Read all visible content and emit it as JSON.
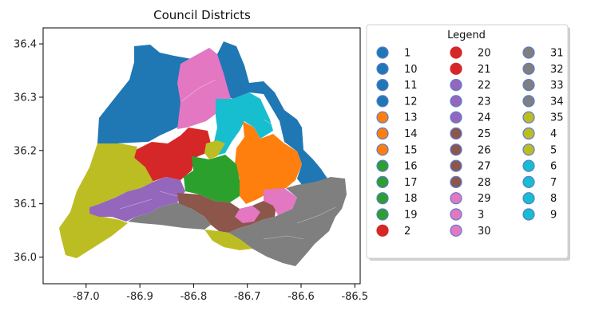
{
  "chart_data": {
    "type": "map",
    "title": "Council Districts",
    "xlabel": "",
    "ylabel": "",
    "xlim": [
      -87.08,
      -86.49
    ],
    "ylim": [
      35.95,
      36.43
    ],
    "xticks": [
      "-87.0",
      "-86.9",
      "-86.8",
      "-86.7",
      "-86.6",
      "-86.5"
    ],
    "xtick_values": [
      -87.0,
      -86.9,
      -86.8,
      -86.7,
      -86.6,
      -86.5
    ],
    "yticks": [
      "36.0",
      "36.1",
      "36.2",
      "36.3",
      "36.4"
    ],
    "ytick_values": [
      36.0,
      36.1,
      36.2,
      36.3,
      36.4
    ],
    "grid": false,
    "legend": {
      "title": "Legend",
      "placement": "outside-right",
      "entries": [
        {
          "label": "1",
          "color": "#1f77b4"
        },
        {
          "label": "10",
          "color": "#1f77b4"
        },
        {
          "label": "11",
          "color": "#1f77b4"
        },
        {
          "label": "12",
          "color": "#1f77b4"
        },
        {
          "label": "13",
          "color": "#ff7f0e"
        },
        {
          "label": "14",
          "color": "#ff7f0e"
        },
        {
          "label": "15",
          "color": "#ff7f0e"
        },
        {
          "label": "16",
          "color": "#2ca02c"
        },
        {
          "label": "17",
          "color": "#2ca02c"
        },
        {
          "label": "18",
          "color": "#2ca02c"
        },
        {
          "label": "19",
          "color": "#2ca02c"
        },
        {
          "label": "2",
          "color": "#d62728"
        },
        {
          "label": "20",
          "color": "#d62728"
        },
        {
          "label": "21",
          "color": "#d62728"
        },
        {
          "label": "22",
          "color": "#9467bd"
        },
        {
          "label": "23",
          "color": "#9467bd"
        },
        {
          "label": "24",
          "color": "#9467bd"
        },
        {
          "label": "25",
          "color": "#8c564b"
        },
        {
          "label": "26",
          "color": "#8c564b"
        },
        {
          "label": "27",
          "color": "#8c564b"
        },
        {
          "label": "28",
          "color": "#8c564b"
        },
        {
          "label": "29",
          "color": "#e377c2"
        },
        {
          "label": "3",
          "color": "#e377c2"
        },
        {
          "label": "30",
          "color": "#e377c2"
        },
        {
          "label": "31",
          "color": "#7f7f7f"
        },
        {
          "label": "32",
          "color": "#7f7f7f"
        },
        {
          "label": "33",
          "color": "#7f7f7f"
        },
        {
          "label": "34",
          "color": "#7f7f7f"
        },
        {
          "label": "35",
          "color": "#bcbd22"
        },
        {
          "label": "4",
          "color": "#bcbd22"
        },
        {
          "label": "5",
          "color": "#bcbd22"
        },
        {
          "label": "6",
          "color": "#17becf"
        },
        {
          "label": "7",
          "color": "#17becf"
        },
        {
          "label": "8",
          "color": "#17becf"
        },
        {
          "label": "9",
          "color": "#17becf"
        }
      ]
    },
    "color_groups": [
      {
        "name": "blue",
        "color": "#1f77b4"
      },
      {
        "name": "orange",
        "color": "#ff7f0e"
      },
      {
        "name": "green",
        "color": "#2ca02c"
      },
      {
        "name": "red",
        "color": "#d62728"
      },
      {
        "name": "purple",
        "color": "#9467bd"
      },
      {
        "name": "brown",
        "color": "#8c564b"
      },
      {
        "name": "pink",
        "color": "#e377c2"
      },
      {
        "name": "gray",
        "color": "#7f7f7f"
      },
      {
        "name": "olive",
        "color": "#bcbd22"
      },
      {
        "name": "cyan",
        "color": "#17becf"
      }
    ]
  }
}
